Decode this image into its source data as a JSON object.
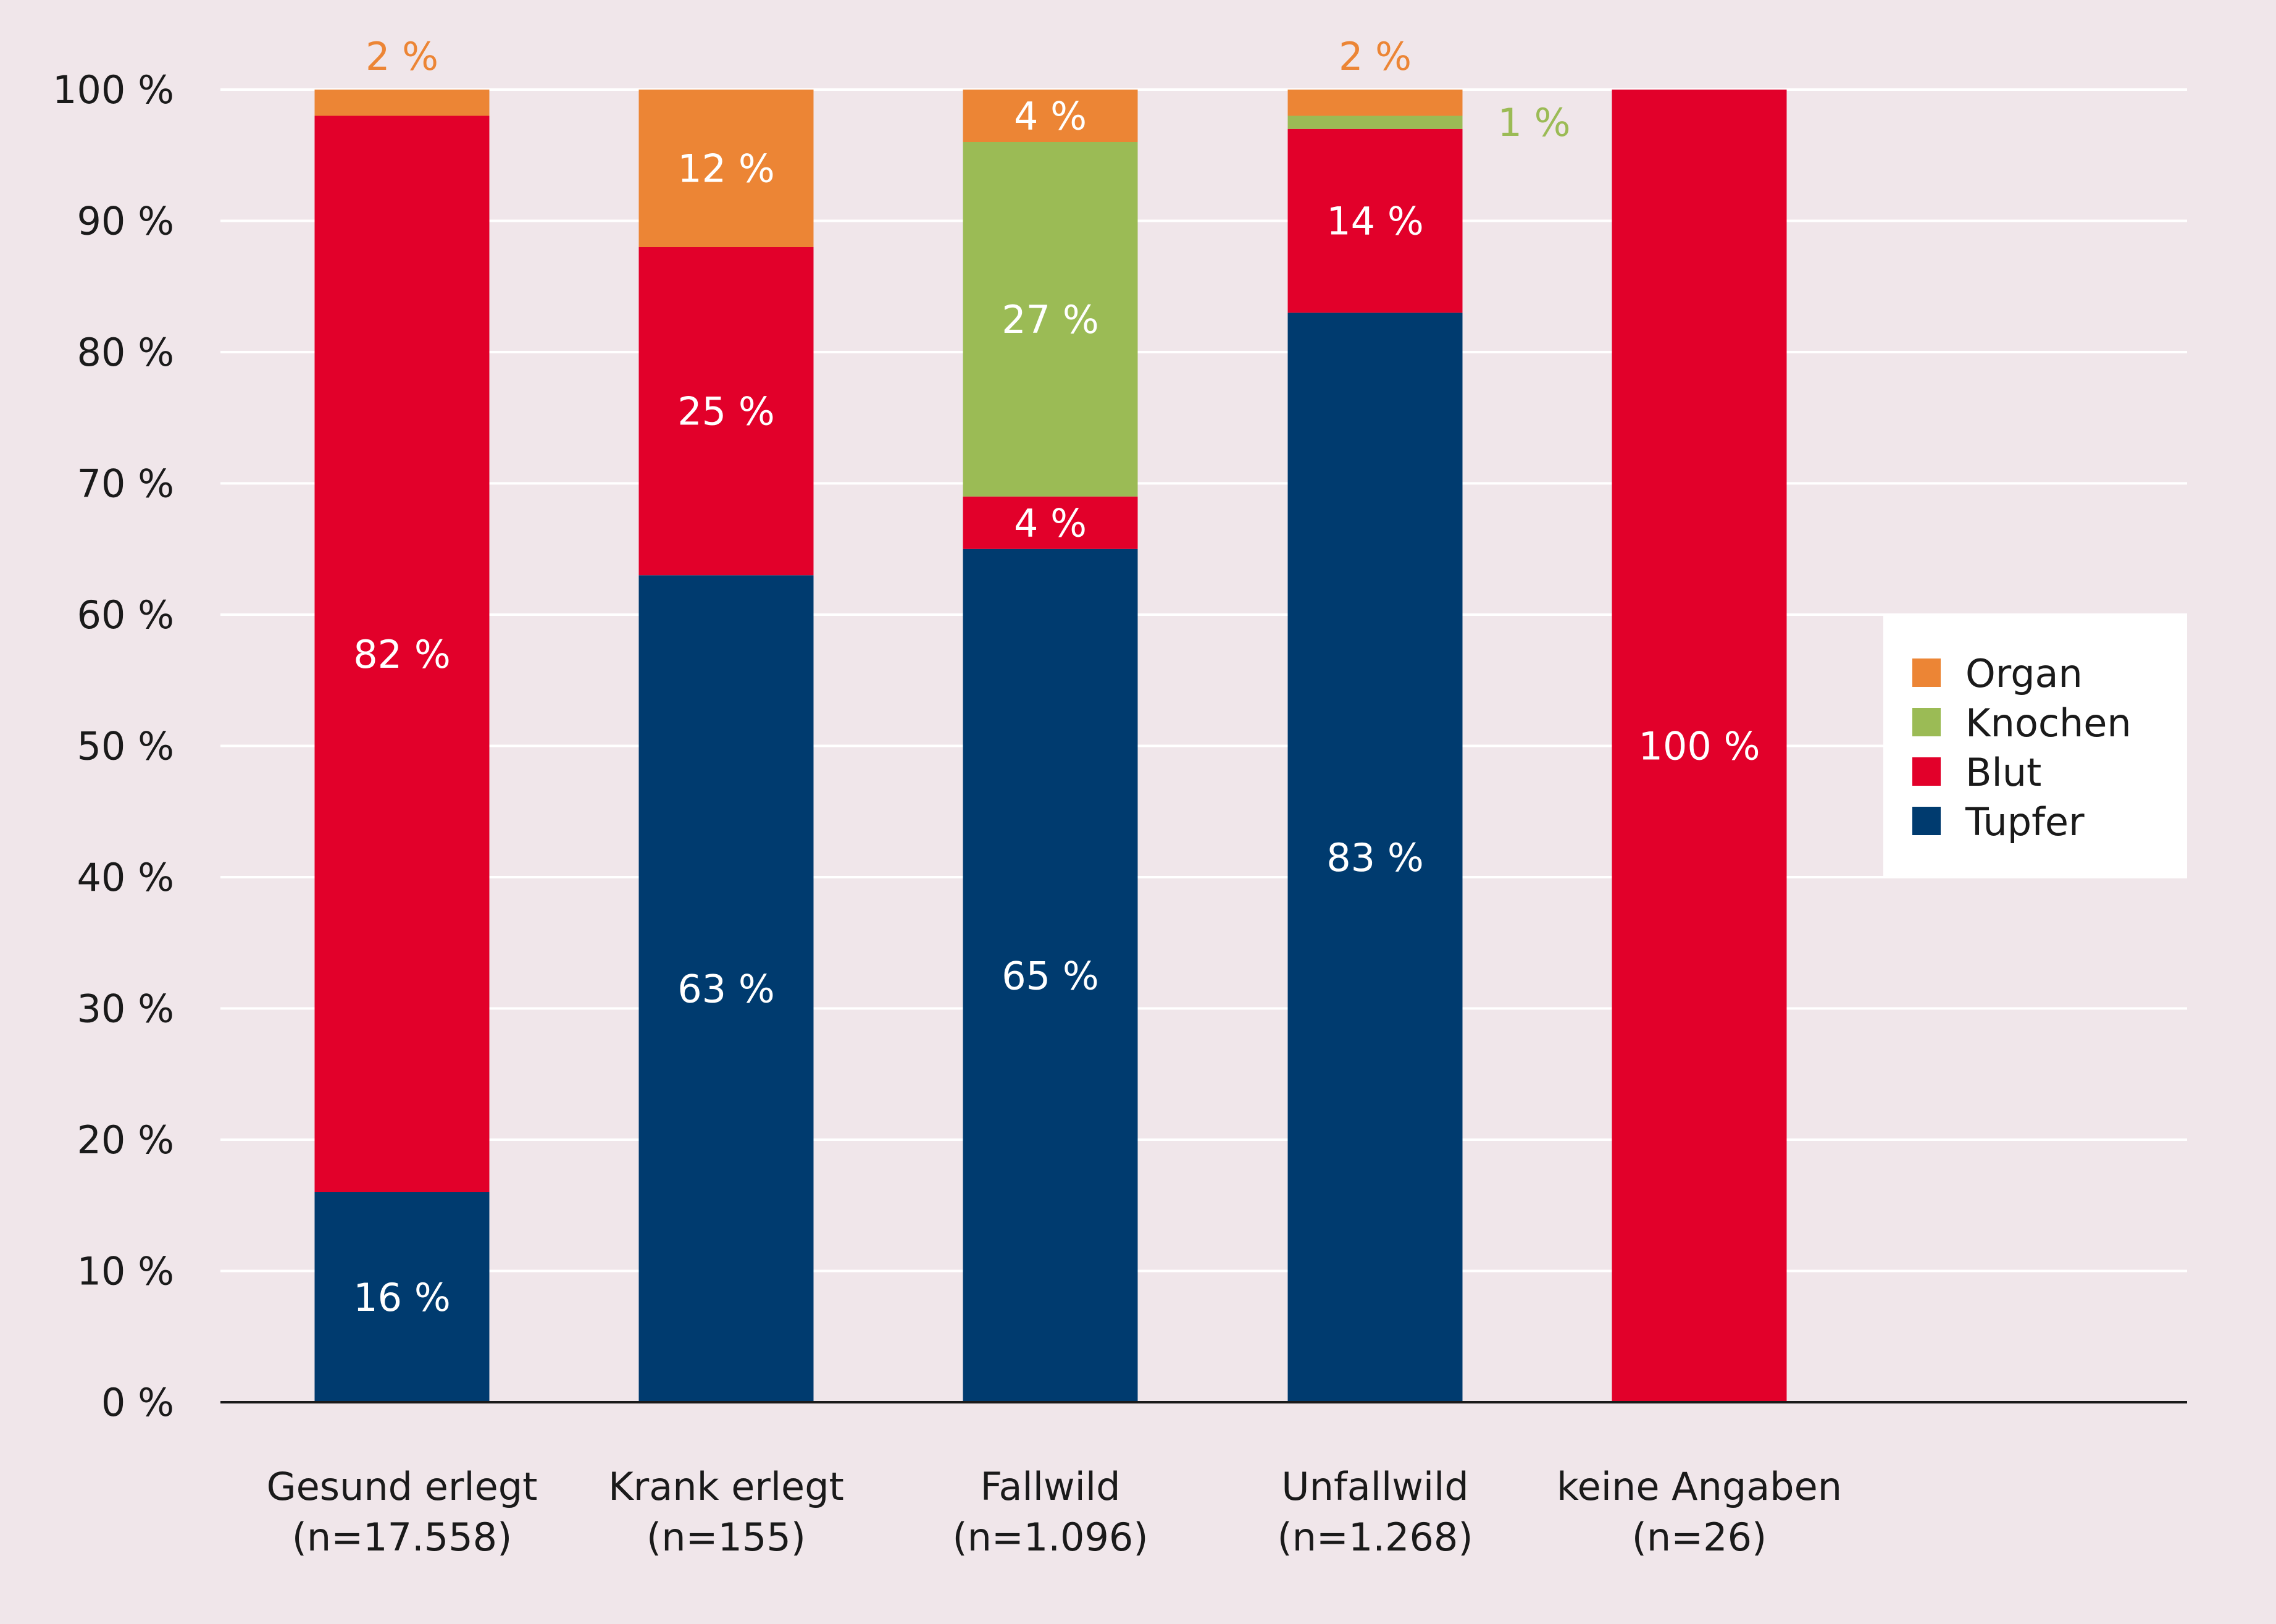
{
  "chart_data": {
    "type": "bar",
    "stacked": true,
    "categories": [
      "Gesund erlegt",
      "Krank erlegt",
      "Fallwild",
      "Unfallwild",
      "keine Angaben"
    ],
    "category_counts": [
      "(n=17.558)",
      "(n=155)",
      "(n=1.096)",
      "(n=1.268)",
      "(n=26)"
    ],
    "series": [
      {
        "name": "Tupfer",
        "color": "#003b6f",
        "values": [
          16,
          63,
          65,
          83,
          0
        ]
      },
      {
        "name": "Blut",
        "color": "#e2002a",
        "values": [
          82,
          25,
          4,
          14,
          100
        ]
      },
      {
        "name": "Knochen",
        "color": "#9bbb55",
        "values": [
          0,
          0,
          27,
          1,
          0
        ]
      },
      {
        "name": "Organ",
        "color": "#ec8535",
        "values": [
          2,
          12,
          4,
          2,
          0
        ]
      }
    ],
    "data_labels": [
      [
        "16 %",
        "63 %",
        "65 %",
        "83 %",
        ""
      ],
      [
        "82 %",
        "25 %",
        "4 %",
        "14 %",
        "100 %"
      ],
      [
        "",
        "",
        "27 %",
        "1 %",
        ""
      ],
      [
        "2 %",
        "12 %",
        "4 %",
        "2 %",
        ""
      ]
    ],
    "legend_order": [
      "Organ",
      "Knochen",
      "Blut",
      "Tupfer"
    ],
    "legend_position": "right",
    "ylim": [
      0,
      100
    ],
    "yticks": [
      "0 %",
      "10 %",
      "20 %",
      "30 %",
      "40 %",
      "50 %",
      "60 %",
      "70 %",
      "80 %",
      "90 %",
      "100 %"
    ],
    "grid": true,
    "title": "",
    "xlabel": "",
    "ylabel": "",
    "colors": {
      "background": "#f0e6ea",
      "gridline": "#ffffff",
      "axis": "#1a1a1a",
      "text": "#1a1a1a",
      "label_on_bar": "#ffffff"
    }
  }
}
